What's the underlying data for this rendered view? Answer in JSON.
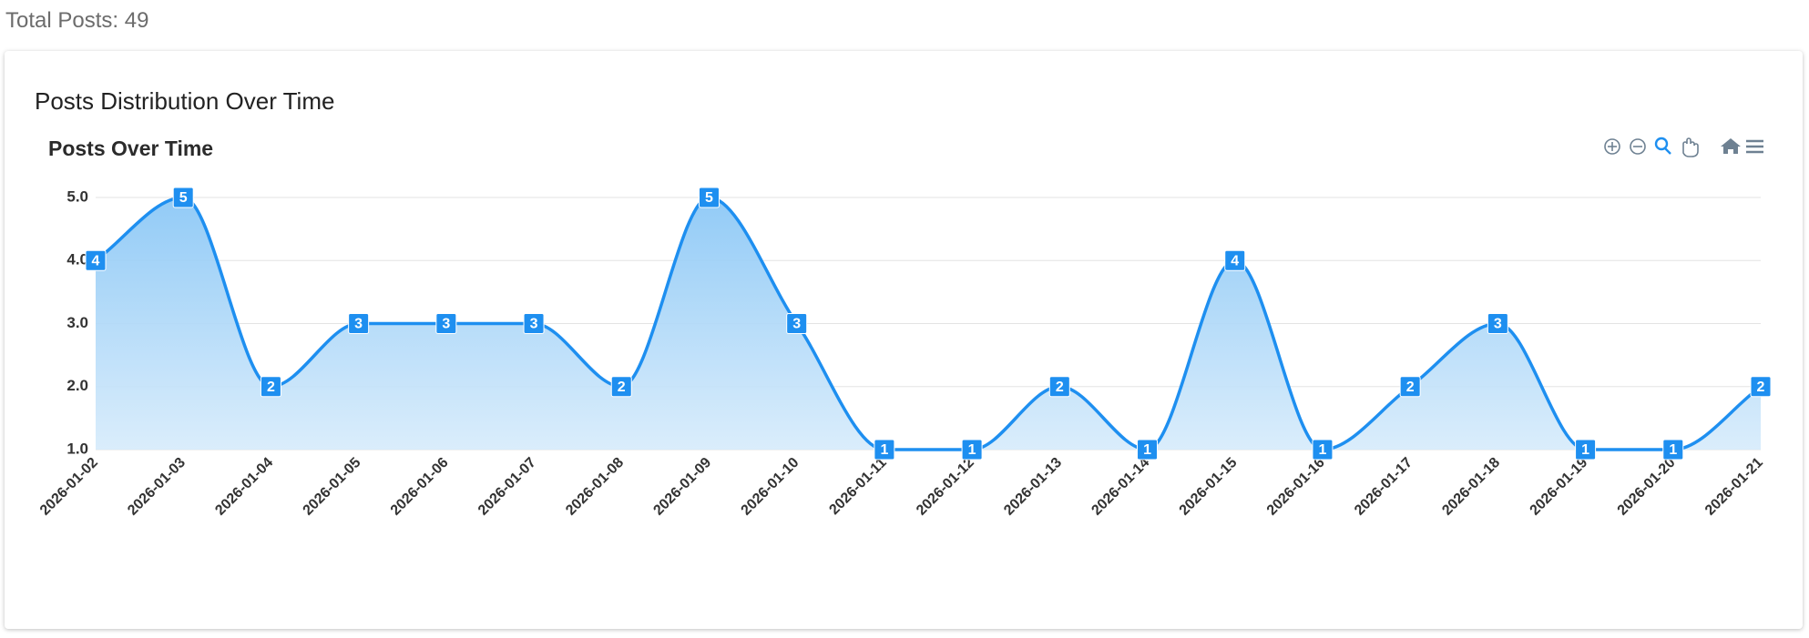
{
  "total_posts": {
    "label": "Total Posts:",
    "value": 49
  },
  "card_title": "Posts Distribution Over Time",
  "chart_data": {
    "type": "area",
    "title": "Posts Over Time",
    "categories": [
      "2026-01-02",
      "2026-01-03",
      "2026-01-04",
      "2026-01-05",
      "2026-01-06",
      "2026-01-07",
      "2026-01-08",
      "2026-01-09",
      "2026-01-10",
      "2026-01-11",
      "2026-01-12",
      "2026-01-13",
      "2026-01-14",
      "2026-01-15",
      "2026-01-16",
      "2026-01-17",
      "2026-01-18",
      "2026-01-19",
      "2026-01-20",
      "2026-01-21"
    ],
    "series": [
      {
        "color": "#1e8ff0",
        "values": [
          4,
          5,
          2,
          3,
          3,
          3,
          2,
          5,
          3,
          1,
          1,
          2,
          1,
          4,
          1,
          2,
          3,
          1,
          1,
          2
        ]
      }
    ],
    "ylim": [
      1,
      5
    ],
    "yticks": [
      {
        "value": 1,
        "label": "1.0"
      },
      {
        "value": 2,
        "label": "2.0"
      },
      {
        "value": 3,
        "label": "3.0"
      },
      {
        "value": 4,
        "label": "4.0"
      },
      {
        "value": 5,
        "label": "5.0"
      }
    ],
    "grid": true,
    "data_labels": true
  }
}
